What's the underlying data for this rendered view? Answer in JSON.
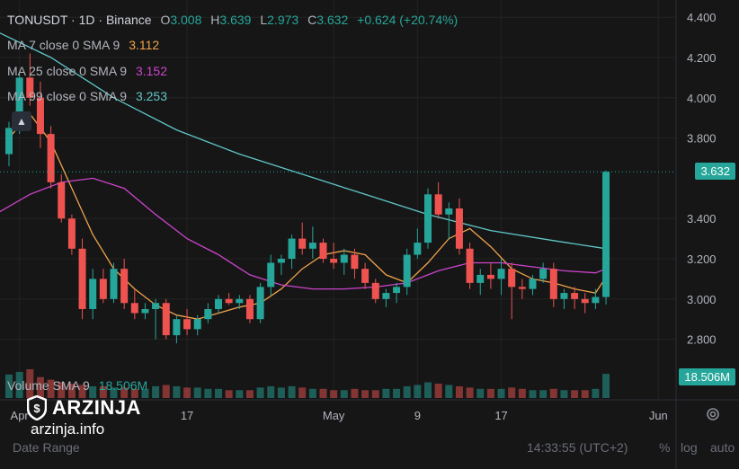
{
  "header": {
    "symbol": "TONUSDT",
    "interval": "1D",
    "exchange": "Binance",
    "open_label": "O",
    "open": "3.008",
    "high_label": "H",
    "high": "3.639",
    "low_label": "L",
    "low": "2.973",
    "close_label": "C",
    "close": "3.632",
    "change": "+0.624 (+20.74%)"
  },
  "indicators": [
    {
      "label": "MA 7 close 0 SMA 9",
      "value": "3.112",
      "color": "#f0a24a"
    },
    {
      "label": "MA 25 close 0 SMA 9",
      "value": "3.152",
      "color": "#cc44cc"
    },
    {
      "label": "MA 99 close 0 SMA 9",
      "value": "3.253",
      "color": "#5fc6c8"
    }
  ],
  "volume": {
    "label": "Volume SMA 9",
    "value": "18.506M"
  },
  "price_badge": "3.632",
  "volume_badge": "18.506M",
  "colors": {
    "up": "#26a69a",
    "down": "#ef5350",
    "background": "#161616"
  },
  "watermark": {
    "brand": "ARZINJA",
    "site": "arzinja.info"
  },
  "footer": {
    "date_range": "Date Range",
    "clock": "14:33:55 (UTC+2)",
    "percent": "%",
    "log": "log",
    "auto": "auto"
  },
  "icons": {
    "collapse": "chevron-up-icon",
    "settings": "gear-icon",
    "logo": "arzinja-shield-icon"
  },
  "chart_data": {
    "type": "candlestick",
    "y_axis_ticks": [
      "4.400",
      "4.200",
      "4.000",
      "3.800",
      "3.400",
      "3.200",
      "3.000",
      "2.800"
    ],
    "ylim": [
      2.7,
      4.45
    ],
    "x_axis_ticks": [
      {
        "label": "Apr",
        "index": 1
      },
      {
        "label": "17",
        "index": 17
      },
      {
        "label": "May",
        "index": 31
      },
      {
        "label": "9",
        "index": 39
      },
      {
        "label": "17",
        "index": 47
      },
      {
        "label": "Jun",
        "index": 62
      }
    ],
    "candles": [
      [
        3.72,
        3.88,
        3.66,
        3.85
      ],
      [
        3.85,
        4.12,
        3.82,
        4.1
      ],
      [
        4.1,
        4.22,
        3.96,
        4.0
      ],
      [
        4.0,
        4.08,
        3.75,
        3.82
      ],
      [
        3.82,
        3.86,
        3.55,
        3.58
      ],
      [
        3.58,
        3.62,
        3.38,
        3.4
      ],
      [
        3.4,
        3.42,
        3.22,
        3.25
      ],
      [
        3.25,
        3.3,
        2.9,
        2.95
      ],
      [
        2.95,
        3.15,
        2.9,
        3.1
      ],
      [
        3.1,
        3.15,
        2.98,
        3.0
      ],
      [
        3.0,
        3.18,
        2.98,
        3.15
      ],
      [
        3.15,
        3.2,
        2.95,
        2.98
      ],
      [
        2.98,
        3.05,
        2.9,
        2.93
      ],
      [
        2.93,
        2.98,
        2.9,
        2.95
      ],
      [
        2.95,
        3.0,
        2.8,
        2.98
      ],
      [
        2.98,
        3.0,
        2.8,
        2.82
      ],
      [
        2.82,
        2.92,
        2.78,
        2.9
      ],
      [
        2.9,
        2.95,
        2.82,
        2.85
      ],
      [
        2.85,
        2.92,
        2.82,
        2.9
      ],
      [
        2.9,
        2.98,
        2.88,
        2.95
      ],
      [
        2.95,
        3.02,
        2.93,
        3.0
      ],
      [
        3.0,
        3.03,
        2.97,
        2.98
      ],
      [
        2.98,
        3.02,
        2.95,
        3.0
      ],
      [
        3.0,
        3.02,
        2.88,
        2.9
      ],
      [
        2.9,
        3.08,
        2.88,
        3.06
      ],
      [
        3.06,
        3.22,
        3.02,
        3.18
      ],
      [
        3.18,
        3.22,
        3.12,
        3.2
      ],
      [
        3.2,
        3.32,
        3.15,
        3.3
      ],
      [
        3.3,
        3.38,
        3.22,
        3.25
      ],
      [
        3.25,
        3.36,
        3.2,
        3.28
      ],
      [
        3.28,
        3.3,
        3.18,
        3.2
      ],
      [
        3.2,
        3.28,
        3.15,
        3.18
      ],
      [
        3.18,
        3.25,
        3.12,
        3.22
      ],
      [
        3.22,
        3.25,
        3.1,
        3.15
      ],
      [
        3.15,
        3.18,
        3.05,
        3.08
      ],
      [
        3.08,
        3.1,
        2.98,
        3.0
      ],
      [
        3.0,
        3.05,
        2.96,
        3.03
      ],
      [
        3.03,
        3.08,
        2.98,
        3.06
      ],
      [
        3.06,
        3.25,
        3.02,
        3.22
      ],
      [
        3.22,
        3.35,
        3.2,
        3.28
      ],
      [
        3.28,
        3.55,
        3.25,
        3.52
      ],
      [
        3.52,
        3.58,
        3.4,
        3.42
      ],
      [
        3.42,
        3.48,
        3.3,
        3.45
      ],
      [
        3.45,
        3.5,
        3.22,
        3.25
      ],
      [
        3.25,
        3.28,
        3.05,
        3.08
      ],
      [
        3.08,
        3.15,
        3.02,
        3.12
      ],
      [
        3.12,
        3.18,
        3.05,
        3.1
      ],
      [
        3.1,
        3.2,
        3.02,
        3.15
      ],
      [
        3.15,
        3.18,
        2.9,
        3.06
      ],
      [
        3.06,
        3.1,
        3.0,
        3.05
      ],
      [
        3.05,
        3.12,
        3.02,
        3.1
      ],
      [
        3.1,
        3.18,
        3.08,
        3.15
      ],
      [
        3.15,
        3.18,
        2.96,
        3.0
      ],
      [
        3.0,
        3.05,
        2.95,
        3.03
      ],
      [
        3.03,
        3.06,
        2.95,
        3.0
      ],
      [
        3.0,
        3.03,
        2.93,
        2.98
      ],
      [
        2.98,
        3.05,
        2.95,
        3.01
      ],
      [
        3.01,
        3.639,
        2.973,
        3.632
      ]
    ],
    "first_candle_index": 0,
    "ma_series": [
      {
        "name": "MA 7",
        "values": [
          [
            0,
            3.8
          ],
          [
            2,
            3.92
          ],
          [
            4,
            3.78
          ],
          [
            6,
            3.55
          ],
          [
            8,
            3.32
          ],
          [
            10,
            3.15
          ],
          [
            12,
            3.05
          ],
          [
            14,
            2.97
          ],
          [
            16,
            2.92
          ],
          [
            18,
            2.9
          ],
          [
            20,
            2.93
          ],
          [
            22,
            2.96
          ],
          [
            24,
            2.98
          ],
          [
            26,
            3.05
          ],
          [
            28,
            3.15
          ],
          [
            30,
            3.22
          ],
          [
            32,
            3.24
          ],
          [
            34,
            3.22
          ],
          [
            36,
            3.12
          ],
          [
            38,
            3.08
          ],
          [
            40,
            3.18
          ],
          [
            42,
            3.3
          ],
          [
            44,
            3.35
          ],
          [
            46,
            3.26
          ],
          [
            48,
            3.15
          ],
          [
            50,
            3.1
          ],
          [
            52,
            3.08
          ],
          [
            54,
            3.05
          ],
          [
            56,
            3.03
          ],
          [
            57,
            3.11
          ]
        ]
      },
      {
        "name": "MA 25",
        "values": [
          [
            -2,
            3.4
          ],
          [
            2,
            3.52
          ],
          [
            5,
            3.58
          ],
          [
            8,
            3.6
          ],
          [
            11,
            3.55
          ],
          [
            14,
            3.42
          ],
          [
            17,
            3.3
          ],
          [
            20,
            3.22
          ],
          [
            23,
            3.12
          ],
          [
            26,
            3.07
          ],
          [
            29,
            3.05
          ],
          [
            32,
            3.05
          ],
          [
            35,
            3.06
          ],
          [
            38,
            3.08
          ],
          [
            41,
            3.14
          ],
          [
            44,
            3.18
          ],
          [
            47,
            3.18
          ],
          [
            50,
            3.16
          ],
          [
            53,
            3.14
          ],
          [
            56,
            3.13
          ],
          [
            57,
            3.15
          ]
        ]
      },
      {
        "name": "MA 99",
        "values": [
          [
            -2,
            4.35
          ],
          [
            4,
            4.2
          ],
          [
            10,
            4.0
          ],
          [
            16,
            3.84
          ],
          [
            22,
            3.72
          ],
          [
            28,
            3.62
          ],
          [
            34,
            3.52
          ],
          [
            40,
            3.42
          ],
          [
            46,
            3.34
          ],
          [
            52,
            3.29
          ],
          [
            57,
            3.25
          ]
        ]
      }
    ],
    "volume_values": [
      18,
      20,
      22,
      16,
      14,
      12,
      11,
      10,
      9,
      9,
      8,
      8,
      7,
      7,
      9,
      10,
      9,
      8,
      8,
      7,
      7,
      6,
      6,
      6,
      8,
      9,
      8,
      9,
      8,
      7,
      7,
      6,
      6,
      7,
      6,
      6,
      7,
      7,
      9,
      10,
      12,
      11,
      10,
      9,
      8,
      7,
      7,
      7,
      8,
      7,
      6,
      6,
      7,
      6,
      6,
      6,
      7,
      18.5
    ]
  }
}
